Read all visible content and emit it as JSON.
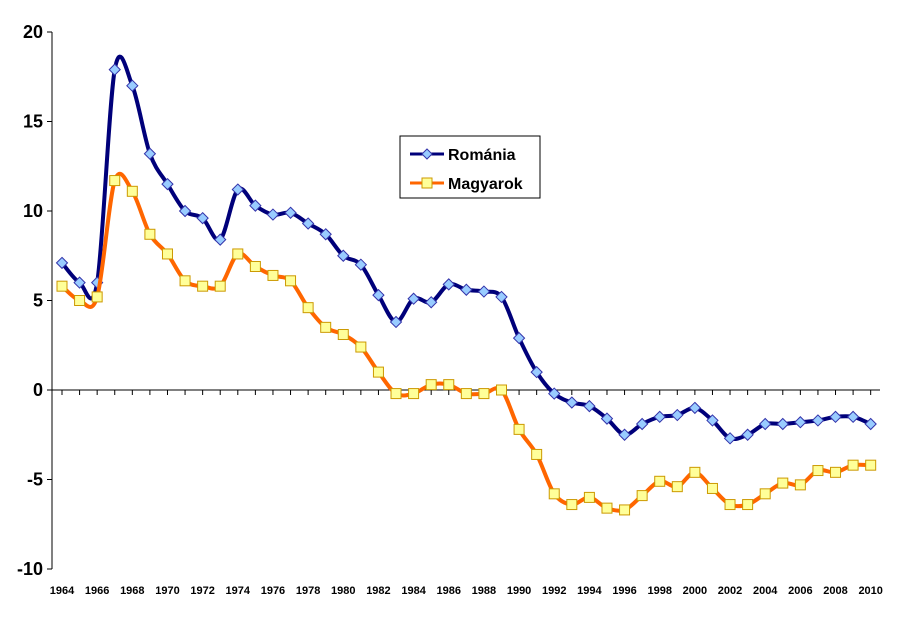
{
  "chart_data": {
    "type": "line",
    "title": "",
    "xlabel": "",
    "ylabel": "",
    "ylim": [
      -10,
      20
    ],
    "yticks": [
      "20",
      "15",
      "10",
      "5",
      "0",
      "-5",
      "-10"
    ],
    "x": [
      1964,
      1965,
      1966,
      1967,
      1968,
      1969,
      1970,
      1971,
      1972,
      1973,
      1974,
      1975,
      1976,
      1977,
      1978,
      1979,
      1980,
      1981,
      1982,
      1983,
      1984,
      1985,
      1986,
      1987,
      1988,
      1989,
      1990,
      1991,
      1992,
      1993,
      1994,
      1995,
      1996,
      1997,
      1998,
      1999,
      2000,
      2001,
      2002,
      2003,
      2004,
      2005,
      2006,
      2007,
      2008,
      2009,
      2010
    ],
    "xtick_labels": [
      "1964",
      "1966",
      "1968",
      "1970",
      "1972",
      "1974",
      "1976",
      "1978",
      "1980",
      "1982",
      "1984",
      "1986",
      "1988",
      "1990",
      "1992",
      "1994",
      "1996",
      "1998",
      "2000",
      "2002",
      "2004",
      "2006",
      "2008",
      "2010"
    ],
    "grid": false,
    "legend_position": "center",
    "series": [
      {
        "name": "Románia",
        "color": "#00007a",
        "marker_fill": "#99ccff",
        "marker": "diamond",
        "values": [
          7.1,
          6.0,
          6.0,
          17.9,
          17.0,
          13.2,
          11.5,
          10.0,
          9.6,
          8.4,
          11.2,
          10.3,
          9.8,
          9.9,
          9.3,
          8.7,
          7.5,
          7.0,
          5.3,
          3.8,
          5.1,
          4.9,
          5.9,
          5.6,
          5.5,
          5.2,
          2.9,
          1.0,
          -0.2,
          -0.7,
          -0.9,
          -1.6,
          -2.5,
          -1.9,
          -1.5,
          -1.4,
          -1.0,
          -1.7,
          -2.7,
          -2.5,
          -1.9,
          -1.9,
          -1.8,
          -1.7,
          -1.5,
          -1.5,
          -1.9
        ]
      },
      {
        "name": "Magyarok",
        "color": "#ff6600",
        "marker_fill": "#ffff99",
        "marker": "square",
        "values": [
          5.8,
          5.0,
          5.2,
          11.7,
          11.1,
          8.7,
          7.6,
          6.1,
          5.8,
          5.8,
          7.6,
          6.9,
          6.4,
          6.1,
          4.6,
          3.5,
          3.1,
          2.4,
          1.0,
          -0.2,
          -0.2,
          0.3,
          0.3,
          -0.2,
          -0.2,
          0.0,
          -2.2,
          -3.6,
          -5.8,
          -6.4,
          -6.0,
          -6.6,
          -6.7,
          -5.9,
          -5.1,
          -5.4,
          -4.6,
          -5.5,
          -6.4,
          -6.4,
          -5.8,
          -5.2,
          -5.3,
          -4.5,
          -4.6,
          -4.2,
          -4.2
        ]
      }
    ]
  }
}
